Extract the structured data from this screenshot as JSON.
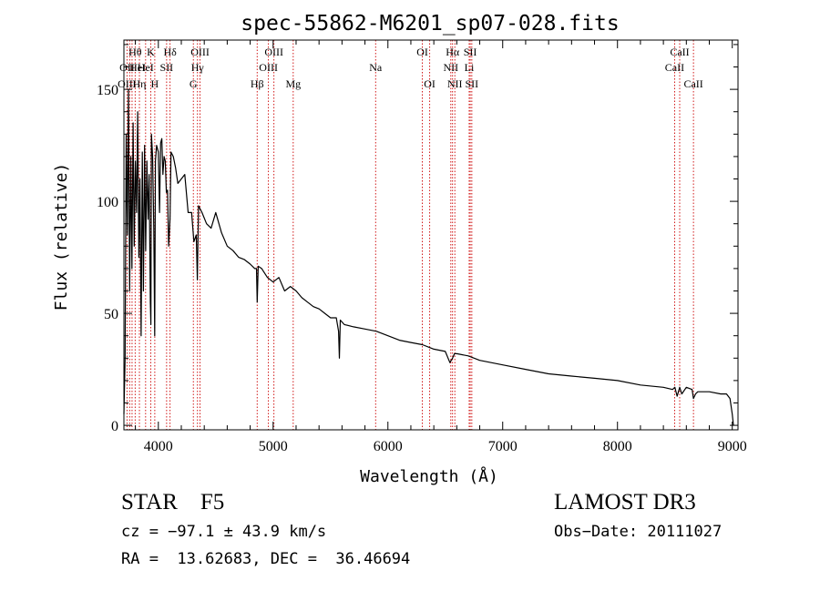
{
  "chart_data": {
    "type": "line",
    "title": "spec-55862-M6201_sp07-028.fits",
    "xlabel": "Wavelength (Å)",
    "ylabel": "Flux (relative)",
    "xlim": [
      3700,
      9050
    ],
    "ylim": [
      -2,
      172
    ],
    "xticks": [
      4000,
      5000,
      6000,
      7000,
      8000,
      9000
    ],
    "xtick_labels": [
      "4000",
      "5000",
      "6000",
      "7000",
      "8000",
      "9000"
    ],
    "yticks": [
      0,
      50,
      100,
      150
    ],
    "ytick_labels": [
      "0",
      "50",
      "100",
      "150"
    ],
    "grid": false,
    "series": [
      {
        "name": "spectrum",
        "x": [
          3700,
          3710,
          3720,
          3730,
          3740,
          3750,
          3760,
          3770,
          3780,
          3790,
          3800,
          3810,
          3820,
          3830,
          3840,
          3850,
          3860,
          3870,
          3880,
          3890,
          3900,
          3910,
          3920,
          3930,
          3935,
          3940,
          3950,
          3960,
          3968,
          3975,
          3985,
          4000,
          4010,
          4020,
          4030,
          4040,
          4050,
          4060,
          4070,
          4080,
          4090,
          4102,
          4110,
          4130,
          4150,
          4170,
          4200,
          4230,
          4260,
          4290,
          4310,
          4330,
          4340,
          4350,
          4380,
          4420,
          4460,
          4500,
          4550,
          4600,
          4650,
          4700,
          4750,
          4800,
          4840,
          4855,
          4861,
          4870,
          4900,
          4950,
          5000,
          5050,
          5100,
          5150,
          5200,
          5250,
          5300,
          5350,
          5400,
          5450,
          5500,
          5550,
          5570,
          5577,
          5585,
          5620,
          5700,
          5800,
          5900,
          6000,
          6100,
          6200,
          6300,
          6400,
          6500,
          6540,
          6563,
          6580,
          6600,
          6700,
          6800,
          6900,
          7000,
          7200,
          7400,
          7600,
          7800,
          8000,
          8200,
          8400,
          8480,
          8500,
          8520,
          8542,
          8560,
          8600,
          8650,
          8662,
          8680,
          8700,
          8800,
          8900,
          8950,
          8980,
          9000,
          9010
        ],
        "y": [
          5,
          30,
          130,
          85,
          150,
          60,
          120,
          70,
          135,
          80,
          118,
          95,
          140,
          75,
          110,
          40,
          122,
          60,
          125,
          78,
          118,
          92,
          112,
          55,
          45,
          130,
          120,
          88,
          40,
          118,
          125,
          122,
          95,
          126,
          128,
          112,
          120,
          118,
          104,
          105,
          80,
          92,
          122,
          120,
          115,
          108,
          110,
          112,
          95,
          95,
          82,
          85,
          65,
          98,
          95,
          90,
          88,
          95,
          86,
          80,
          78,
          75,
          74,
          72,
          70,
          70,
          55,
          71,
          70,
          66,
          64,
          66,
          60,
          62,
          60,
          57,
          55,
          53,
          52,
          50,
          48,
          48,
          42,
          30,
          47,
          45,
          44,
          43,
          42,
          40,
          38,
          37,
          36,
          34,
          33,
          28,
          30,
          32,
          32,
          31,
          29,
          28,
          27,
          25,
          23,
          22,
          21,
          20,
          18,
          17,
          16,
          17,
          13,
          17,
          14,
          17,
          16,
          12,
          14,
          15,
          15,
          14,
          14,
          12,
          5,
          0
        ]
      }
    ],
    "line_labels": [
      {
        "label": "OII",
        "wavelength": 3727,
        "row": 2
      },
      {
        "label": "OIII",
        "wavelength": 3727,
        "row": 3
      },
      {
        "label": "Hθ",
        "wavelength": 3798,
        "row": 1
      },
      {
        "label": "HeI",
        "wavelength": 3820,
        "row": 2
      },
      {
        "label": "Hη",
        "wavelength": 3835,
        "row": 3
      },
      {
        "label": "K",
        "wavelength": 3934,
        "row": 1
      },
      {
        "label": "HeI",
        "wavelength": 3889,
        "row": 2
      },
      {
        "label": "SII",
        "wavelength": 4072,
        "row": 2
      },
      {
        "label": "H",
        "wavelength": 3969,
        "row": 3
      },
      {
        "label": "Hδ",
        "wavelength": 4102,
        "row": 1
      },
      {
        "label": "OIII",
        "wavelength": 4363,
        "row": 1
      },
      {
        "label": "Hγ",
        "wavelength": 4341,
        "row": 2
      },
      {
        "label": "G",
        "wavelength": 4305,
        "row": 3
      },
      {
        "label": "Hβ",
        "wavelength": 4861,
        "row": 3
      },
      {
        "label": "OIII",
        "wavelength": 5007,
        "row": 1
      },
      {
        "label": "OIII",
        "wavelength": 4959,
        "row": 2
      },
      {
        "label": "Mg",
        "wavelength": 5175,
        "row": 3
      },
      {
        "label": "Na",
        "wavelength": 5893,
        "row": 2
      },
      {
        "label": "OI",
        "wavelength": 6300,
        "row": 1
      },
      {
        "label": "OI",
        "wavelength": 6364,
        "row": 3
      },
      {
        "label": "Hα",
        "wavelength": 6563,
        "row": 1
      },
      {
        "label": "SII",
        "wavelength": 6717,
        "row": 1
      },
      {
        "label": "NII",
        "wavelength": 6548,
        "row": 2
      },
      {
        "label": "Li",
        "wavelength": 6708,
        "row": 2
      },
      {
        "label": "NII",
        "wavelength": 6583,
        "row": 3
      },
      {
        "label": "SII",
        "wavelength": 6731,
        "row": 3
      },
      {
        "label": "CaII",
        "wavelength": 8542,
        "row": 1
      },
      {
        "label": "CaII",
        "wavelength": 8498,
        "row": 2
      },
      {
        "label": "CaII",
        "wavelength": 8662,
        "row": 3
      }
    ],
    "marker_lines": [
      3727,
      3750,
      3771,
      3798,
      3835,
      3889,
      3934,
      3969,
      4072,
      4102,
      4305,
      4341,
      4363,
      4861,
      4959,
      5007,
      5175,
      5893,
      6300,
      6364,
      6548,
      6563,
      6583,
      6708,
      6717,
      6731,
      8498,
      8542,
      8662
    ]
  },
  "info": {
    "class_label": "STAR    F5",
    "survey": "LAMOST DR3",
    "cz": "cz = −97.1 ± 43.9 km/s",
    "obs_date": "Obs−Date: 20111027",
    "radec": "RA =  13.62683, DEC =  36.46694"
  },
  "colors": {
    "spectrum": "#000000",
    "marker_line": "#cc0000",
    "axes": "#000000"
  }
}
